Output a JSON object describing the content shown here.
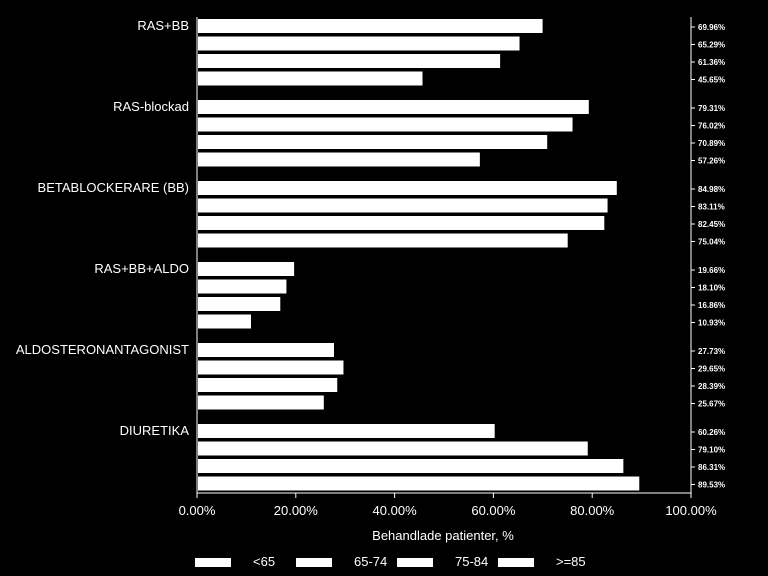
{
  "chart_data": {
    "type": "bar",
    "orientation": "horizontal",
    "categories": [
      "RAS+BB",
      "RAS-blockad",
      "BETABLOCKERARE (BB)",
      "RAS+BB+ALDO",
      "ALDOSTERONANTAGONIST",
      "DIURETIKA"
    ],
    "series": [
      {
        "name": "<65",
        "values": [
          69.96,
          79.31,
          84.98,
          19.66,
          27.73,
          60.26
        ],
        "labels": [
          "69.96%",
          "79.31%",
          "84.98%",
          "19.66%",
          "27.73%",
          "60.26%"
        ]
      },
      {
        "name": "65-74",
        "values": [
          65.29,
          76.02,
          83.11,
          18.1,
          29.65,
          79.1
        ],
        "labels": [
          "65.29%",
          "76.02%",
          "83.11%",
          "18.10%",
          "29.65%",
          "79.10%"
        ]
      },
      {
        "name": "75-84",
        "values": [
          61.36,
          70.89,
          82.45,
          16.86,
          28.39,
          86.31
        ],
        "labels": [
          "61.36%",
          "70.89%",
          "82.45%",
          "16.86%",
          "28.39%",
          "86.31%"
        ]
      },
      {
        "name": ">=85",
        "values": [
          45.65,
          57.26,
          75.04,
          10.93,
          25.67,
          89.53
        ],
        "labels": [
          "45.65%",
          "57.26%",
          "75.04%",
          "10.93%",
          "25.67%",
          "89.53%"
        ]
      }
    ],
    "xlabel": "Behandlade patienter, %",
    "xlim": [
      0,
      100
    ],
    "xticks": [
      0,
      20,
      40,
      60,
      80,
      100
    ],
    "xtick_labels": [
      "0.00%",
      "20.00%",
      "40.00%",
      "60.00%",
      "80.00%",
      "100.00%"
    ],
    "legend_position": "bottom",
    "colors": {
      "background": "#000000",
      "bars": "#ffffff",
      "text": "#ffffff"
    }
  }
}
